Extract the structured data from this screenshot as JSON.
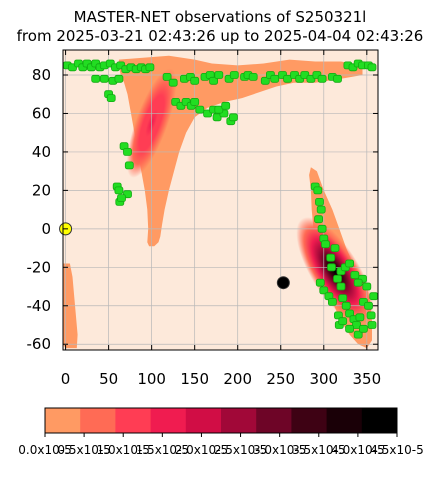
{
  "chart_data": {
    "type": "heatmap",
    "title": "MASTER-NET observations of S250321l",
    "subtitle": "from 2025-03-21 02:43:26 up to 2025-04-04 02:43:26",
    "xlabel": "",
    "ylabel": "",
    "xlim": [
      -3,
      363
    ],
    "ylim": [
      -63,
      93
    ],
    "x_ticks": [
      0,
      50,
      100,
      150,
      200,
      250,
      300,
      350
    ],
    "y_ticks": [
      80,
      60,
      40,
      20,
      0,
      -20,
      -40,
      -60
    ],
    "x_tick_labels": [
      "0",
      "50",
      "100",
      "150",
      "200",
      "250",
      "300",
      "350"
    ],
    "y_tick_labels": [
      "80",
      "60",
      "40",
      "20",
      "0",
      "-20",
      "-40",
      "-60"
    ],
    "grid": true,
    "background_color": "#fde9da",
    "probability_regions": [
      {
        "name": "northern-arc",
        "outline": [
          [
            62,
            88
          ],
          [
            90,
            89
          ],
          [
            120,
            90
          ],
          [
            150,
            88
          ],
          [
            170,
            86
          ],
          [
            200,
            85
          ],
          [
            230,
            86
          ],
          [
            260,
            88
          ],
          [
            290,
            87
          ],
          [
            320,
            87
          ],
          [
            345,
            85
          ],
          [
            345,
            80
          ],
          [
            320,
            78
          ],
          [
            290,
            76
          ],
          [
            265,
            76
          ],
          [
            245,
            74
          ],
          [
            225,
            71
          ],
          [
            205,
            68
          ],
          [
            185,
            66
          ],
          [
            165,
            63
          ],
          [
            150,
            58
          ],
          [
            140,
            50
          ],
          [
            132,
            40
          ],
          [
            126,
            30
          ],
          [
            120,
            20
          ],
          [
            115,
            10
          ],
          [
            112,
            2
          ],
          [
            110,
            -4
          ],
          [
            108,
            -7
          ],
          [
            103,
            -9
          ],
          [
            97,
            -9
          ],
          [
            95,
            -7
          ],
          [
            96,
            0
          ],
          [
            95,
            10
          ],
          [
            92,
            20
          ],
          [
            88,
            30
          ],
          [
            84,
            40
          ],
          [
            80,
            50
          ],
          [
            76,
            60
          ],
          [
            72,
            70
          ],
          [
            68,
            76
          ],
          [
            64,
            80
          ],
          [
            62,
            85
          ]
        ]
      },
      {
        "name": "southern-tail",
        "outline": [
          [
            -3,
            -18
          ],
          [
            5,
            -18
          ],
          [
            8,
            -25
          ],
          [
            10,
            -35
          ],
          [
            12,
            -45
          ],
          [
            14,
            -55
          ],
          [
            13,
            -62
          ],
          [
            0,
            -62
          ],
          [
            -3,
            -60
          ]
        ]
      },
      {
        "name": "southern-lobe",
        "outline": [
          [
            285,
            32
          ],
          [
            292,
            30
          ],
          [
            300,
            20
          ],
          [
            310,
            10
          ],
          [
            318,
            0
          ],
          [
            326,
            -10
          ],
          [
            334,
            -18
          ],
          [
            342,
            -25
          ],
          [
            350,
            -30
          ],
          [
            354,
            -38
          ],
          [
            356,
            -48
          ],
          [
            356,
            -58
          ],
          [
            350,
            -62
          ],
          [
            340,
            -60
          ],
          [
            330,
            -55
          ],
          [
            320,
            -48
          ],
          [
            312,
            -40
          ],
          [
            305,
            -30
          ],
          [
            298,
            -20
          ],
          [
            292,
            -10
          ],
          [
            288,
            0
          ],
          [
            286,
            10
          ],
          [
            285,
            20
          ],
          [
            283,
            28
          ]
        ]
      }
    ],
    "hotspots": [
      {
        "name": "northern-core",
        "x": 100,
        "y": 55,
        "intensity": 1.6e-05
      },
      {
        "name": "southern-core",
        "x": 313,
        "y": -22,
        "intensity": 4.5e-05
      }
    ],
    "observed_fields": [
      [
        2,
        85
      ],
      [
        8,
        84
      ],
      [
        15,
        86
      ],
      [
        20,
        84
      ],
      [
        25,
        86
      ],
      [
        30,
        84
      ],
      [
        35,
        86
      ],
      [
        40,
        84
      ],
      [
        45,
        85
      ],
      [
        52,
        86
      ],
      [
        58,
        84
      ],
      [
        64,
        85
      ],
      [
        70,
        83
      ],
      [
        76,
        84
      ],
      [
        82,
        83
      ],
      [
        88,
        84
      ],
      [
        93,
        83
      ],
      [
        98,
        84
      ],
      [
        35,
        78
      ],
      [
        45,
        78
      ],
      [
        55,
        77
      ],
      [
        62,
        78
      ],
      [
        118,
        79
      ],
      [
        125,
        76
      ],
      [
        138,
        78
      ],
      [
        145,
        79
      ],
      [
        150,
        77
      ],
      [
        162,
        79
      ],
      [
        168,
        80
      ],
      [
        172,
        77
      ],
      [
        178,
        80
      ],
      [
        190,
        78
      ],
      [
        196,
        80
      ],
      [
        208,
        79
      ],
      [
        212,
        80
      ],
      [
        218,
        79
      ],
      [
        232,
        77
      ],
      [
        238,
        80
      ],
      [
        243,
        78
      ],
      [
        252,
        80
      ],
      [
        258,
        78
      ],
      [
        266,
        80
      ],
      [
        272,
        78
      ],
      [
        278,
        80
      ],
      [
        285,
        78
      ],
      [
        292,
        80
      ],
      [
        298,
        78
      ],
      [
        310,
        79
      ],
      [
        316,
        78
      ],
      [
        328,
        85
      ],
      [
        334,
        84
      ],
      [
        340,
        86
      ],
      [
        345,
        85
      ],
      [
        352,
        85
      ],
      [
        356,
        84
      ],
      [
        50,
        70
      ],
      [
        53,
        68
      ],
      [
        128,
        66
      ],
      [
        134,
        64
      ],
      [
        140,
        66
      ],
      [
        146,
        64
      ],
      [
        150,
        66
      ],
      [
        156,
        62
      ],
      [
        165,
        60
      ],
      [
        172,
        62
      ],
      [
        176,
        58
      ],
      [
        184,
        60
      ],
      [
        192,
        56
      ],
      [
        195,
        58
      ],
      [
        178,
        62
      ],
      [
        186,
        64
      ],
      [
        68,
        43
      ],
      [
        72,
        40
      ],
      [
        74,
        33
      ],
      [
        60,
        22
      ],
      [
        62,
        20
      ],
      [
        63,
        14
      ],
      [
        72,
        18
      ],
      [
        65,
        16
      ],
      [
        290,
        22
      ],
      [
        293,
        20
      ],
      [
        295,
        14
      ],
      [
        297,
        10
      ],
      [
        294,
        5
      ],
      [
        298,
        0
      ],
      [
        300,
        -5
      ],
      [
        302,
        -8
      ],
      [
        308,
        -15
      ],
      [
        309,
        -20
      ],
      [
        313,
        -10
      ],
      [
        296,
        -28
      ],
      [
        300,
        -32
      ],
      [
        306,
        -35
      ],
      [
        310,
        -38
      ],
      [
        316,
        -26
      ],
      [
        320,
        -30
      ],
      [
        322,
        -36
      ],
      [
        326,
        -40
      ],
      [
        330,
        -44
      ],
      [
        335,
        -47
      ],
      [
        338,
        -50
      ],
      [
        342,
        -46
      ],
      [
        346,
        -38
      ],
      [
        350,
        -30
      ],
      [
        352,
        -40
      ],
      [
        355,
        -45
      ],
      [
        358,
        -35
      ],
      [
        345,
        -26
      ],
      [
        320,
        -22
      ],
      [
        325,
        -20
      ],
      [
        330,
        -18
      ],
      [
        336,
        -24
      ],
      [
        340,
        -28
      ],
      [
        317,
        -45
      ],
      [
        318,
        -50
      ],
      [
        322,
        -48
      ],
      [
        330,
        -52
      ],
      [
        340,
        -55
      ],
      [
        346,
        -52
      ],
      [
        356,
        -50
      ]
    ],
    "markers": [
      {
        "name": "sun",
        "x": 0,
        "y": 0,
        "color": "#ffff00"
      },
      {
        "name": "moon",
        "x": 253,
        "y": -28,
        "color": "#000000"
      }
    ],
    "colorbar": {
      "colors": [
        "#ff9a63",
        "#ff6b55",
        "#ff3d54",
        "#f01c50",
        "#d10d45",
        "#a10838",
        "#6e0527",
        "#3e0214",
        "#1a0007",
        "#000000"
      ],
      "tick_labels": [
        "0.0x10-5",
        "0.5x10-5",
        "1.0x10-5",
        "1.5x10-5",
        "2.0x10-5",
        "2.5x10-5",
        "3.0x10-5",
        "3.5x10-5",
        "4.0x10-5",
        "4.5x10-5"
      ],
      "min": 0,
      "max": 4.5e-05
    }
  }
}
